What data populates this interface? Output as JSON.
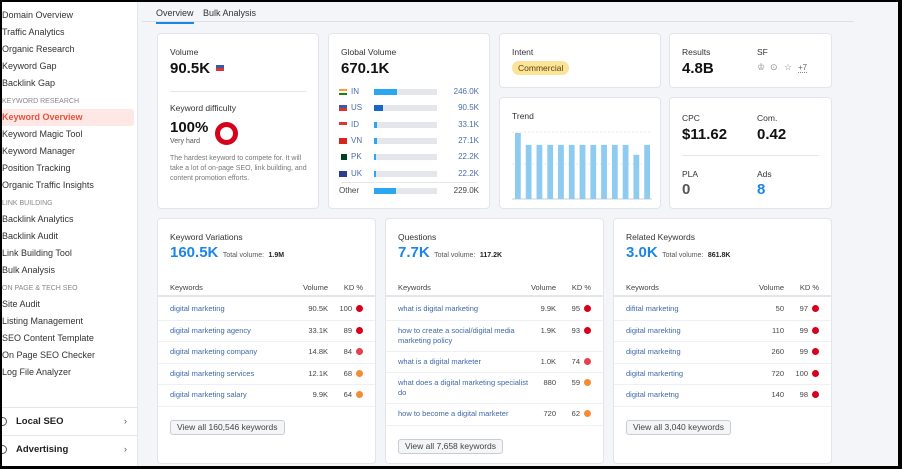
{
  "sidebar": {
    "items_top": [
      "Domain Overview",
      "Traffic Analytics",
      "Organic Research",
      "Keyword Gap",
      "Backlink Gap"
    ],
    "sections": [
      {
        "header": "KEYWORD RESEARCH",
        "items": [
          "Keyword Overview",
          "Keyword Magic Tool",
          "Keyword Manager",
          "Position Tracking",
          "Organic Traffic Insights"
        ]
      },
      {
        "header": "LINK BUILDING",
        "items": [
          "Backlink Analytics",
          "Backlink Audit",
          "Link Building Tool",
          "Bulk Analysis"
        ]
      },
      {
        "header": "ON PAGE & TECH SEO",
        "items": [
          "Site Audit",
          "Listing Management",
          "SEO Content Template",
          "On Page SEO Checker",
          "Log File Analyzer"
        ]
      }
    ],
    "active_item": "Keyword Overview",
    "groups": [
      "Local SEO",
      "Advertising"
    ]
  },
  "tabs": [
    "Overview",
    "Bulk Analysis"
  ],
  "volume": {
    "label": "Volume",
    "value": "90.5K",
    "flag": "US"
  },
  "difficulty": {
    "label": "Keyword difficulty",
    "value": "100%",
    "level": "Very hard",
    "percent": 100,
    "description": "The hardest keyword to compete for. It will take a lot of on-page SEO, link building, and content promotion efforts.",
    "color": "#d6001c"
  },
  "global_volume": {
    "label": "Global Volume",
    "value": "670.1K",
    "rows": [
      {
        "cc": "IN",
        "value": "246.0K",
        "fill": 0.37
      },
      {
        "cc": "US",
        "value": "90.5K",
        "fill": 0.14
      },
      {
        "cc": "ID",
        "value": "33.1K",
        "fill": 0.05
      },
      {
        "cc": "VN",
        "value": "27.1K",
        "fill": 0.04
      },
      {
        "cc": "PK",
        "value": "22.2K",
        "fill": 0.03
      },
      {
        "cc": "UK",
        "value": "22.2K",
        "fill": 0.03
      }
    ],
    "other": {
      "label": "Other",
      "value": "229.0K",
      "fill": 0.35
    }
  },
  "intent": {
    "label": "Intent",
    "badge": "Commercial"
  },
  "trend": {
    "label": "Trend",
    "values": [
      1.0,
      0.82,
      0.82,
      0.82,
      0.82,
      0.82,
      0.82,
      0.82,
      0.82,
      0.82,
      0.82,
      0.67,
      0.82
    ]
  },
  "results": {
    "label": "Results",
    "value": "4.8B",
    "sf_label": "SF",
    "sf_more": "+7"
  },
  "cpc": {
    "label": "CPC",
    "value": "$11.62"
  },
  "com": {
    "label": "Com.",
    "value": "0.42"
  },
  "pla": {
    "label": "PLA",
    "value": "0"
  },
  "ads": {
    "label": "Ads",
    "value": "8"
  },
  "panels": [
    {
      "title": "Keyword Variations",
      "count": "160.5K",
      "total_label": "Total volume:",
      "total": "1.9M",
      "cols": [
        "Keywords",
        "Volume",
        "KD %"
      ],
      "rows": [
        [
          "digital marketing",
          "90.5K",
          "100",
          "#d6001c"
        ],
        [
          "digital marketing agency",
          "33.1K",
          "89",
          "#d6001c"
        ],
        [
          "digital marketing company",
          "14.8K",
          "84",
          "#e5404d"
        ],
        [
          "digital marketing services",
          "12.1K",
          "68",
          "#f58b33"
        ],
        [
          "digital marketing salary",
          "9.9K",
          "64",
          "#f58b33"
        ]
      ],
      "view_all": "View all 160,546 keywords"
    },
    {
      "title": "Questions",
      "count": "7.7K",
      "total_label": "Total volume:",
      "total": "117.2K",
      "cols": [
        "Keywords",
        "Volume",
        "KD %"
      ],
      "rows": [
        [
          "what is digital marketing",
          "9.9K",
          "95",
          "#d6001c"
        ],
        [
          "how to create a social/digital media marketing policy",
          "1.9K",
          "93",
          "#d6001c"
        ],
        [
          "what is a digital marketer",
          "1.0K",
          "74",
          "#e5404d"
        ],
        [
          "what does a digital marketing specialist do",
          "880",
          "59",
          "#f58b33"
        ],
        [
          "how to become a digital marketer",
          "720",
          "62",
          "#f58b33"
        ]
      ],
      "view_all": "View all 7,658 keywords"
    },
    {
      "title": "Related Keywords",
      "count": "3.0K",
      "total_label": "Total volume:",
      "total": "861.8K",
      "cols": [
        "Keywords",
        "Volume",
        "KD %"
      ],
      "rows": [
        [
          "difital marketing",
          "50",
          "97",
          "#d6001c"
        ],
        [
          "digital marekting",
          "110",
          "99",
          "#d6001c"
        ],
        [
          "digital markeitng",
          "260",
          "99",
          "#d6001c"
        ],
        [
          "digital markerting",
          "720",
          "100",
          "#d6001c"
        ],
        [
          "digital marketng",
          "140",
          "98",
          "#d6001c"
        ]
      ],
      "view_all": "View all 3,040 keywords"
    }
  ]
}
